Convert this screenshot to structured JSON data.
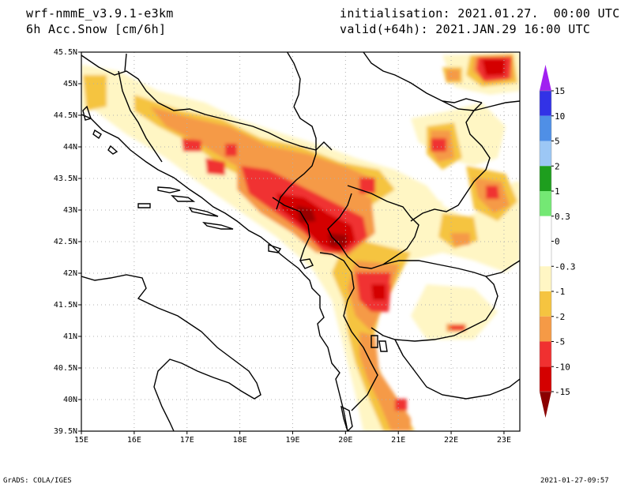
{
  "header": {
    "model": "wrf-nmmE_v3.9.1-e3km",
    "field": "6h Acc.Snow [cm/6h]",
    "init": "initialisation: 2021.01.27.  00:00 UTC",
    "valid": "valid(+64h): 2021.JAN.29 16:00 UTC"
  },
  "axes": {
    "lat_labels": [
      "45.5N",
      "45N",
      "44.5N",
      "44N",
      "43.5N",
      "43N",
      "42.5N",
      "42N",
      "41.5N",
      "41N",
      "40.5N",
      "40N",
      "39.5N"
    ],
    "lon_labels": [
      "15E",
      "16E",
      "17E",
      "18E",
      "19E",
      "20E",
      "21E",
      "22E",
      "23E"
    ],
    "lat_range": [
      39.5,
      45.5
    ],
    "lon_range": [
      15,
      23.3
    ],
    "grid": "dotted"
  },
  "colorbar": {
    "labels": [
      "15",
      "10",
      "5",
      "2",
      "1",
      "0.3",
      "0",
      "-0.3",
      "-1",
      "-2",
      "-5",
      "-10",
      "-15"
    ],
    "colors": [
      "#3232e6",
      "#4f8fe6",
      "#9cc7f5",
      "#1e9e1e",
      "#74e874",
      "#ffffff",
      "#ffffff",
      "#fff6c4",
      "#f5c440",
      "#f59a46",
      "#f03030",
      "#d40000",
      "#9a0000"
    ],
    "top_arrow_color": "#a020f0",
    "bottom_arrow_color": "#8b0000"
  },
  "footer": {
    "left": "GrADS: COLA/IGES",
    "right": "2021-01-27-09:57"
  }
}
